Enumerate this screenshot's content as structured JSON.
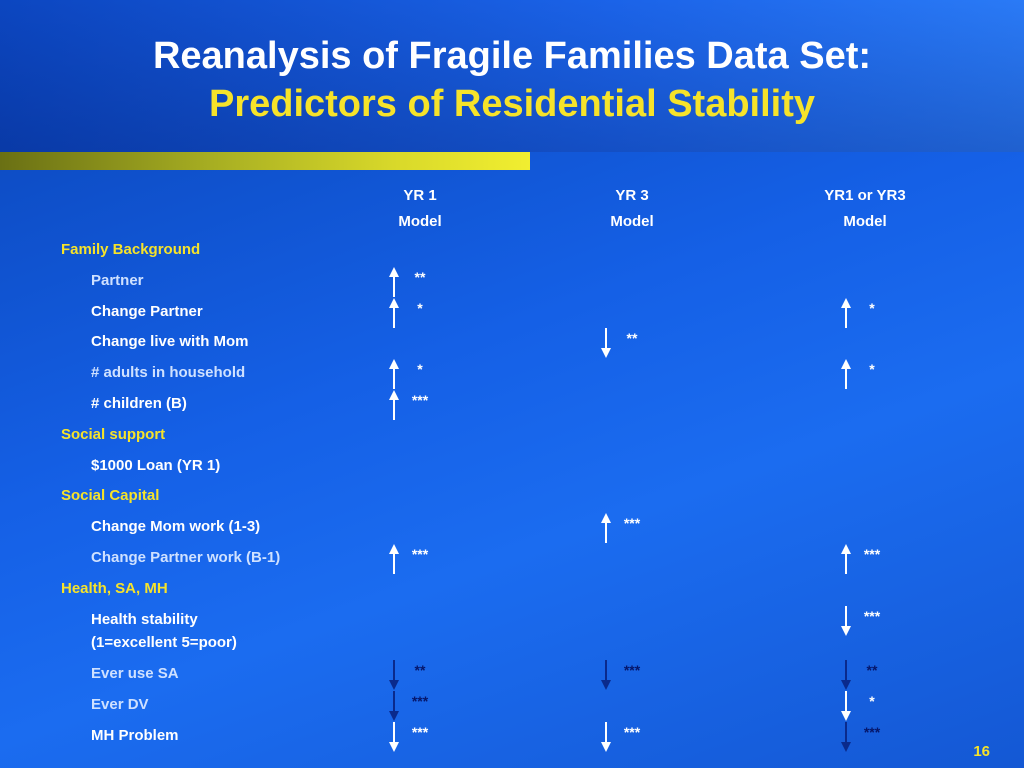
{
  "title": {
    "line1": "Reanalysis of Fragile Families Data Set:",
    "line2": "Predictors of Residential Stability"
  },
  "colors": {
    "title_white": "#ffffff",
    "accent_yellow": "#f6e32a",
    "text_white": "#ffffff",
    "text_dim": "#cfe1ff",
    "text_dark": "#06166a",
    "arrow_white": "#ffffff",
    "arrow_dark": "#0a2a8c"
  },
  "columns": [
    {
      "line1": "YR 1",
      "line2": "Model"
    },
    {
      "line1": "YR 3",
      "line2": "Model"
    },
    {
      "line1": "YR1 or YR3",
      "line2": "Model"
    }
  ],
  "rows": [
    {
      "kind": "category",
      "label": "Family Background",
      "cells": [
        null,
        null,
        null
      ]
    },
    {
      "kind": "item",
      "label": "Partner",
      "label_tone": "dim",
      "cells": [
        {
          "dir": "up",
          "sig": "**",
          "tone": "white"
        },
        null,
        null
      ]
    },
    {
      "kind": "item",
      "label": "Change Partner",
      "label_tone": "white",
      "cells": [
        {
          "dir": "up",
          "sig": "*",
          "tone": "white"
        },
        null,
        {
          "dir": "up",
          "sig": "*",
          "tone": "white"
        }
      ]
    },
    {
      "kind": "item",
      "label": "Change live with Mom",
      "label_tone": "white",
      "cells": [
        null,
        {
          "dir": "down",
          "sig": "**",
          "tone": "white"
        },
        null
      ]
    },
    {
      "kind": "item",
      "label": "# adults in household",
      "label_tone": "dim",
      "cells": [
        {
          "dir": "up",
          "sig": "*",
          "tone": "white"
        },
        null,
        {
          "dir": "up",
          "sig": "*",
          "tone": "white"
        }
      ]
    },
    {
      "kind": "item",
      "label": "# children (B)",
      "label_tone": "white",
      "cells": [
        {
          "dir": "up",
          "sig": "***",
          "tone": "white"
        },
        null,
        null
      ]
    },
    {
      "kind": "category",
      "label": "Social support",
      "cells": [
        null,
        null,
        null
      ]
    },
    {
      "kind": "item",
      "label": "$1000 Loan (YR 1)",
      "label_tone": "white",
      "cells": [
        null,
        null,
        null
      ]
    },
    {
      "kind": "category",
      "label": "Social Capital",
      "cells": [
        null,
        null,
        null
      ]
    },
    {
      "kind": "item",
      "label": "Change Mom work (1-3)",
      "label_tone": "white",
      "cells": [
        null,
        {
          "dir": "up",
          "sig": "***",
          "tone": "white"
        },
        null
      ]
    },
    {
      "kind": "item",
      "label": "Change Partner work (B-1)",
      "label_tone": "dim",
      "cells": [
        {
          "dir": "up",
          "sig": "***",
          "tone": "white"
        },
        null,
        {
          "dir": "up",
          "sig": "***",
          "tone": "white"
        }
      ]
    },
    {
      "kind": "category",
      "label": "Health, SA, MH",
      "cells": [
        null,
        null,
        null
      ]
    },
    {
      "kind": "item",
      "label": "Health stability",
      "label2": "(1=excellent 5=poor)",
      "label_tone": "white",
      "cells": [
        null,
        null,
        {
          "dir": "down",
          "sig": "***",
          "tone": "white"
        }
      ]
    },
    {
      "kind": "item",
      "label": "Ever use SA",
      "label_tone": "dim",
      "cells": [
        {
          "dir": "down",
          "sig": "**",
          "tone": "dark"
        },
        {
          "dir": "down",
          "sig": "***",
          "tone": "dark"
        },
        {
          "dir": "down",
          "sig": "**",
          "tone": "dark"
        }
      ]
    },
    {
      "kind": "item",
      "label": "Ever DV",
      "label_tone": "dim",
      "cells": [
        {
          "dir": "down",
          "sig": "***",
          "tone": "dark"
        },
        null,
        {
          "dir": "down",
          "sig": "*",
          "tone": "white"
        }
      ]
    },
    {
      "kind": "item",
      "label": "MH Problem",
      "label_tone": "white",
      "cells": [
        {
          "dir": "down",
          "sig": "***",
          "tone": "white"
        },
        {
          "dir": "down",
          "sig": "***",
          "tone": "white"
        },
        {
          "dir": "down",
          "sig": "***",
          "tone": "dark"
        }
      ]
    }
  ],
  "slide_number": "16"
}
